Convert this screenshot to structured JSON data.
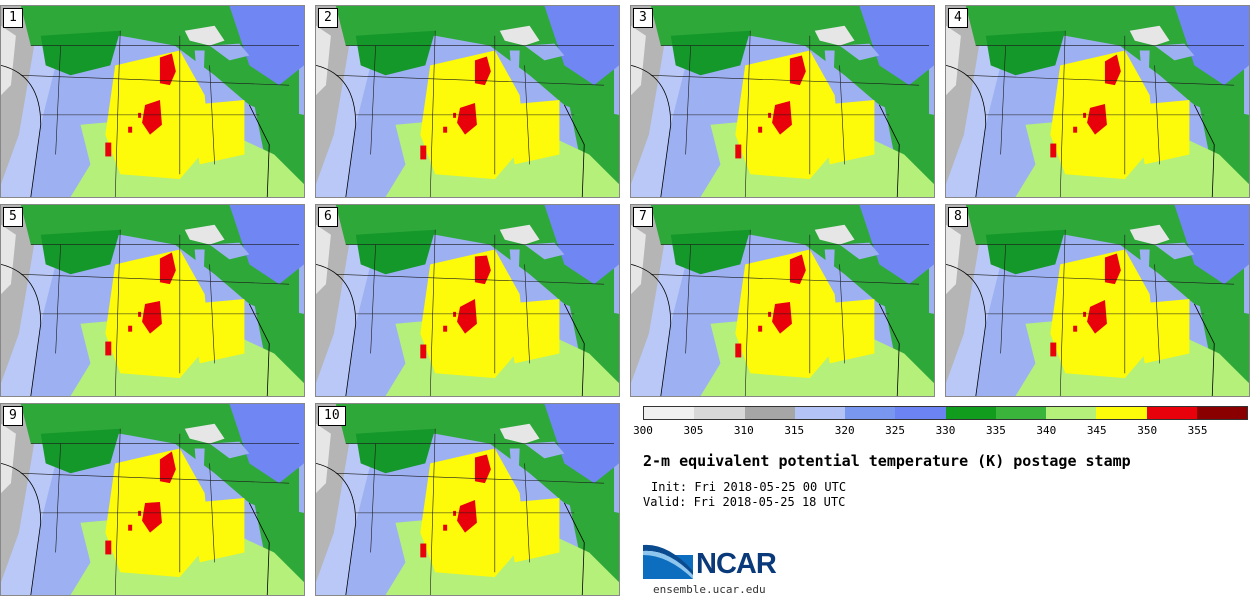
{
  "panels": [
    {
      "label": "1"
    },
    {
      "label": "2"
    },
    {
      "label": "3"
    },
    {
      "label": "4"
    },
    {
      "label": "5"
    },
    {
      "label": "6"
    },
    {
      "label": "7"
    },
    {
      "label": "8"
    },
    {
      "label": "9"
    },
    {
      "label": "10"
    }
  ],
  "colorbar": {
    "colors": [
      "#f0f0f0",
      "#d8d8d8",
      "#a6a6a6",
      "#b3c3f5",
      "#7a97f0",
      "#6b83f3",
      "#119c1e",
      "#3ab43a",
      "#b4f07a",
      "#fdfa0a",
      "#e8000a",
      "#8a0000"
    ],
    "ticks": [
      "300",
      "305",
      "310",
      "315",
      "320",
      "325",
      "330",
      "335",
      "340",
      "345",
      "350",
      "355"
    ]
  },
  "title": "2-m equivalent potential temperature (K) postage stamp",
  "init": "Init: Fri 2018-05-25 00 UTC",
  "valid": "Valid: Fri 2018-05-25 18 UTC",
  "logo": {
    "text": "NCAR",
    "url": "ensemble.ucar.edu"
  }
}
